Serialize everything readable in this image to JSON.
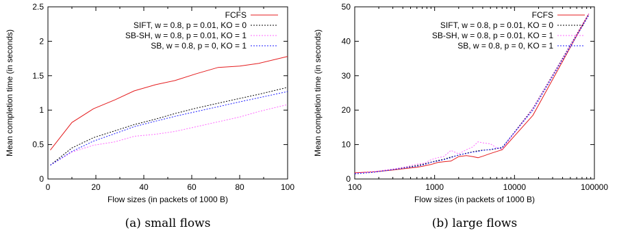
{
  "colors": {
    "FCFS": "#e41a1c",
    "SIFT": "#000000",
    "SB-SH": "#ff66ff",
    "SB": "#1a1aff"
  },
  "chart_data": [
    {
      "type": "line",
      "caption": "(a) small flows",
      "xlabel": "Flow sizes (in packets of 1000 B)",
      "ylabel": "Mean completion time (in seconds)",
      "xlim": [
        0,
        100
      ],
      "ylim": [
        0,
        2.5
      ],
      "xscale": "linear",
      "xticks": [
        0,
        20,
        40,
        60,
        80,
        100
      ],
      "xtick_labels": [
        "0",
        "20",
        "40",
        "60",
        "80",
        "100"
      ],
      "yticks": [
        0,
        0.5,
        1,
        1.5,
        2,
        2.5
      ],
      "ytick_labels": [
        "0",
        "0.5",
        "1",
        "1.5",
        "2",
        "2.5"
      ],
      "legend_position": "top-right",
      "grid": false,
      "series": [
        {
          "name": "FCFS",
          "style": "solid",
          "color": "#e41a1c",
          "x": [
            1,
            10,
            19,
            28,
            36,
            45,
            53,
            62,
            71,
            80,
            88,
            100
          ],
          "y": [
            0.42,
            0.82,
            1.02,
            1.15,
            1.28,
            1.37,
            1.43,
            1.53,
            1.62,
            1.64,
            1.68,
            1.78
          ]
        },
        {
          "name": "SIFT, w = 0.8, p = 0.01, KO = 0",
          "style": "dotted",
          "color": "#000000",
          "x": [
            1,
            10,
            19,
            28,
            36,
            45,
            53,
            62,
            71,
            80,
            88,
            100
          ],
          "y": [
            0.2,
            0.45,
            0.6,
            0.7,
            0.79,
            0.87,
            0.95,
            1.03,
            1.1,
            1.17,
            1.23,
            1.33
          ]
        },
        {
          "name": "SB-SH, w = 0.8, p = 0.01, KO = 1",
          "style": "dotted",
          "color": "#ff66ff",
          "x": [
            1,
            10,
            19,
            28,
            36,
            45,
            53,
            62,
            71,
            80,
            88,
            100
          ],
          "y": [
            0.2,
            0.39,
            0.49,
            0.54,
            0.62,
            0.65,
            0.69,
            0.76,
            0.83,
            0.9,
            0.98,
            1.08
          ]
        },
        {
          "name": "SB, w = 0.8, p = 0, KO = 1",
          "style": "dotted",
          "color": "#1a1aff",
          "x": [
            1,
            10,
            19,
            28,
            36,
            45,
            53,
            62,
            71,
            80,
            88,
            100
          ],
          "y": [
            0.2,
            0.4,
            0.55,
            0.66,
            0.76,
            0.84,
            0.91,
            0.98,
            1.05,
            1.12,
            1.18,
            1.27
          ]
        }
      ]
    },
    {
      "type": "line",
      "caption": "(b) large flows",
      "xlabel": "Flow sizes (in packets of 1000 B)",
      "ylabel": "Mean completion time (in seconds)",
      "xlim": [
        100,
        100000
      ],
      "ylim": [
        0,
        50
      ],
      "xscale": "log",
      "xticks": [
        100,
        1000,
        10000,
        100000
      ],
      "xtick_labels": [
        "100",
        "1000",
        "10000",
        "100000"
      ],
      "yticks": [
        0,
        10,
        20,
        30,
        40,
        50
      ],
      "ytick_labels": [
        "0",
        "10",
        "20",
        "30",
        "40",
        "50"
      ],
      "legend_position": "top-right",
      "grid": false,
      "series": [
        {
          "name": "FCFS",
          "style": "solid",
          "color": "#e41a1c",
          "x": [
            100,
            180,
            300,
            450,
            600,
            750,
            900,
            1100,
            1300,
            1600,
            2000,
            2500,
            3000,
            3500,
            4000,
            5000,
            6000,
            7000,
            17000,
            85000
          ],
          "y": [
            1.8,
            2.1,
            2.6,
            3.1,
            3.4,
            3.8,
            4.2,
            4.8,
            5.0,
            5.2,
            6.5,
            6.8,
            6.5,
            6.2,
            6.6,
            7.4,
            8.0,
            8.5,
            18.5,
            48.0
          ]
        },
        {
          "name": "SIFT, w = 0.8, p = 0.01, KO = 0",
          "style": "dotted",
          "color": "#000000",
          "x": [
            100,
            180,
            300,
            450,
            600,
            750,
            900,
            1100,
            1300,
            1600,
            2000,
            2500,
            3000,
            3500,
            4000,
            5000,
            6000,
            7000,
            17000,
            85000
          ],
          "y": [
            1.5,
            2.0,
            2.8,
            3.4,
            3.9,
            4.4,
            4.9,
            5.4,
            5.7,
            6.4,
            6.9,
            7.5,
            7.9,
            8.2,
            8.4,
            8.5,
            8.8,
            9.0,
            20.5,
            48.0
          ]
        },
        {
          "name": "SB-SH, w = 0.8, p = 0.01, KO = 1",
          "style": "dotted",
          "color": "#ff66ff",
          "x": [
            100,
            180,
            300,
            450,
            600,
            750,
            900,
            1100,
            1300,
            1600,
            2000,
            2500,
            3000,
            3500,
            4000,
            5000,
            6000,
            7000,
            17000,
            85000
          ],
          "y": [
            1.6,
            2.2,
            2.9,
            3.6,
            4.3,
            4.6,
            5.6,
            6.2,
            6.5,
            8.3,
            7.3,
            8.5,
            9.3,
            10.8,
            10.5,
            10.2,
            9.0,
            8.6,
            20.5,
            48.0
          ]
        },
        {
          "name": "SB, w = 0.8, p = 0, KO = 1",
          "style": "dotted",
          "color": "#1a1aff",
          "x": [
            100,
            180,
            300,
            450,
            600,
            750,
            900,
            1100,
            1300,
            1600,
            2000,
            2500,
            3000,
            3500,
            4000,
            5000,
            6000,
            7000,
            17000,
            85000
          ],
          "y": [
            1.5,
            2.0,
            2.7,
            3.3,
            3.7,
            4.2,
            4.8,
            5.2,
            5.6,
            6.2,
            7.0,
            7.4,
            7.8,
            8.0,
            8.3,
            8.6,
            8.9,
            9.2,
            20.0,
            47.5
          ]
        }
      ]
    }
  ]
}
